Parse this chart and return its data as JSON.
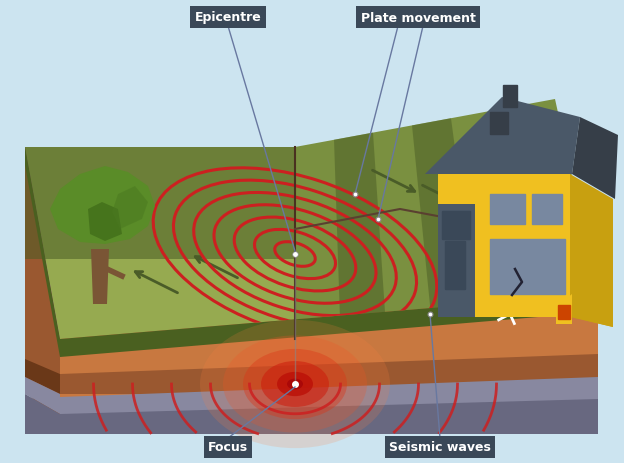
{
  "bg_color": "#cce4f0",
  "labels": {
    "epicentre": "Epicentre",
    "plate_movement": "Plate movement",
    "focus": "Focus",
    "seismic_waves": "Seismic waves"
  },
  "colors": {
    "sky": "#cce4f0",
    "grass_light": "#96aa50",
    "grass_mid": "#7a9040",
    "grass_dark": "#5c7030",
    "grass_darker": "#4a5c25",
    "grass_edge": "#4a6020",
    "soil_orange": "#c87840",
    "soil_brown": "#9a5830",
    "soil_dark": "#6a3818",
    "rock_grey": "#8888a0",
    "rock_dark": "#686880",
    "seismic_red": "#cc2020",
    "focus_col1": "#ff8040",
    "focus_col2": "#ee5020",
    "focus_col3": "#cc2010",
    "tree_trunk": "#7a5535",
    "tree_green1": "#5a8c28",
    "tree_green2": "#4a7820",
    "tree_green3": "#3a6415",
    "house_yellow": "#f0c020",
    "house_yellow_dark": "#c8a010",
    "house_roof": "#4a5868",
    "house_roof_dark": "#363e48",
    "house_slate": "#4a5868",
    "house_window": "#7888a0",
    "house_window_dark": "#3a4858",
    "label_bg": "#3a4858",
    "label_text": "#ffffff",
    "line_col": "#6878a0"
  }
}
